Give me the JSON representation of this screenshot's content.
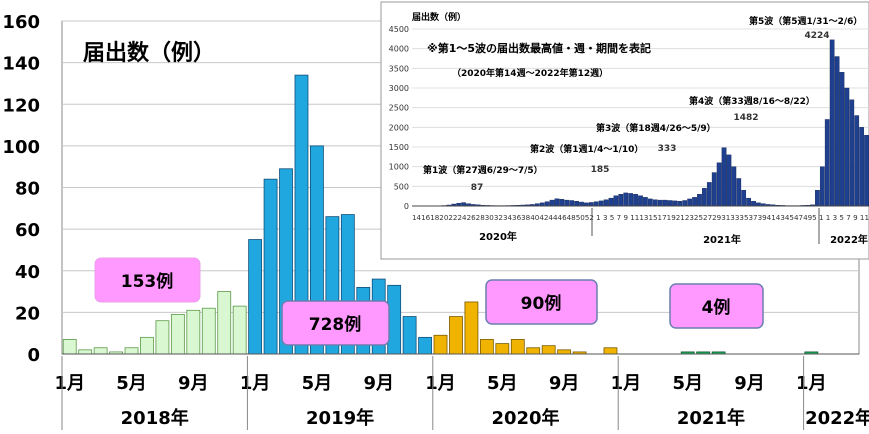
{
  "chart_data": [
    {
      "type": "bar",
      "title": "届出数（例）",
      "ylim": [
        0,
        160
      ],
      "yticks": [
        0,
        20,
        40,
        60,
        80,
        100,
        120,
        140,
        160
      ],
      "x_tick_labels": [
        "1月",
        "5月",
        "9月",
        "1月",
        "5月",
        "9月",
        "1月",
        "5月",
        "9月",
        "1月",
        "5月",
        "9月",
        "1月"
      ],
      "x_tick_months": [
        0,
        4,
        8,
        12,
        16,
        20,
        24,
        28,
        32,
        36,
        40,
        44,
        48
      ],
      "year_labels": [
        "2018年",
        "2019年",
        "2020年",
        "2021年",
        "2022年"
      ],
      "series": [
        {
          "year": "2018",
          "color": "#d9f7d0",
          "edge": "#5c9a4a",
          "values": [
            7,
            2,
            3,
            1,
            3,
            8,
            16,
            19,
            21,
            22,
            30,
            23
          ]
        },
        {
          "year": "2019",
          "color": "#21a7e0",
          "edge": "#104e7a",
          "values": [
            55,
            84,
            89,
            134,
            100,
            66,
            67,
            32,
            36,
            33,
            18,
            8
          ]
        },
        {
          "year": "2020",
          "color": "#f0b400",
          "edge": "#7a5a00",
          "values": [
            9,
            18,
            25,
            7,
            5,
            7,
            3,
            4,
            2,
            1,
            0,
            3
          ]
        },
        {
          "year": "2021",
          "color": "#1aa85a",
          "edge": "#0d5a30",
          "values": [
            0,
            0,
            0,
            0,
            1,
            1,
            1,
            0,
            0,
            0,
            0,
            0
          ]
        },
        {
          "year": "2022",
          "color": "#1aa85a",
          "edge": "#0d5a30",
          "values": [
            1
          ]
        }
      ],
      "annotations": [
        "153例",
        "728例",
        "90例",
        "4例"
      ],
      "grid": true
    },
    {
      "type": "bar",
      "title": "届出数（例）",
      "note": "※第1～5波の届出数最高値・週・期間を表記",
      "subnote": "（2020年第14週～2022年第12週）",
      "ylim": [
        0,
        4500
      ],
      "yticks": [
        0,
        500,
        1000,
        1500,
        2000,
        2500,
        3000,
        3500,
        4000,
        4500
      ],
      "x_tick_text": "1416182022242628303234363840424446485052 1  3  5  7  9 11131517192123252729313335373941434547495 1  1  3  5  7  9 11",
      "year_labels": [
        "2020年",
        "2021年",
        "2022年"
      ],
      "color": "#1f3f8f",
      "week_values": [
        0,
        2,
        2,
        3,
        4,
        5,
        12,
        25,
        50,
        70,
        87,
        60,
        40,
        30,
        20,
        15,
        12,
        10,
        10,
        12,
        15,
        20,
        25,
        30,
        40,
        60,
        80,
        110,
        150,
        185,
        170,
        150,
        140,
        120,
        100,
        80,
        90,
        110,
        130,
        160,
        200,
        260,
        300,
        333,
        320,
        300,
        260,
        220,
        180,
        160,
        150,
        150,
        140,
        130,
        120,
        140,
        180,
        220,
        300,
        450,
        600,
        850,
        1100,
        1482,
        1300,
        1000,
        700,
        400,
        200,
        120,
        80,
        60,
        40,
        30,
        20,
        15,
        10,
        10,
        10,
        15,
        20,
        30,
        400,
        1000,
        2200,
        4224,
        3800,
        3400,
        3000,
        2700,
        2300,
        2000,
        1800
      ],
      "wave_labels": [
        {
          "label": "第1波（第27週6/29～7/5）",
          "peak": "87"
        },
        {
          "label": "第2波（第1週1/4～1/10）",
          "peak": "185"
        },
        {
          "label": "第3波（第18週4/26～5/9）",
          "peak": "333"
        },
        {
          "label": "第4波（第33週8/16～8/22）",
          "peak": "1482"
        },
        {
          "label": "第5波（第5週1/31～2/6）",
          "peak": "4224"
        }
      ]
    }
  ]
}
